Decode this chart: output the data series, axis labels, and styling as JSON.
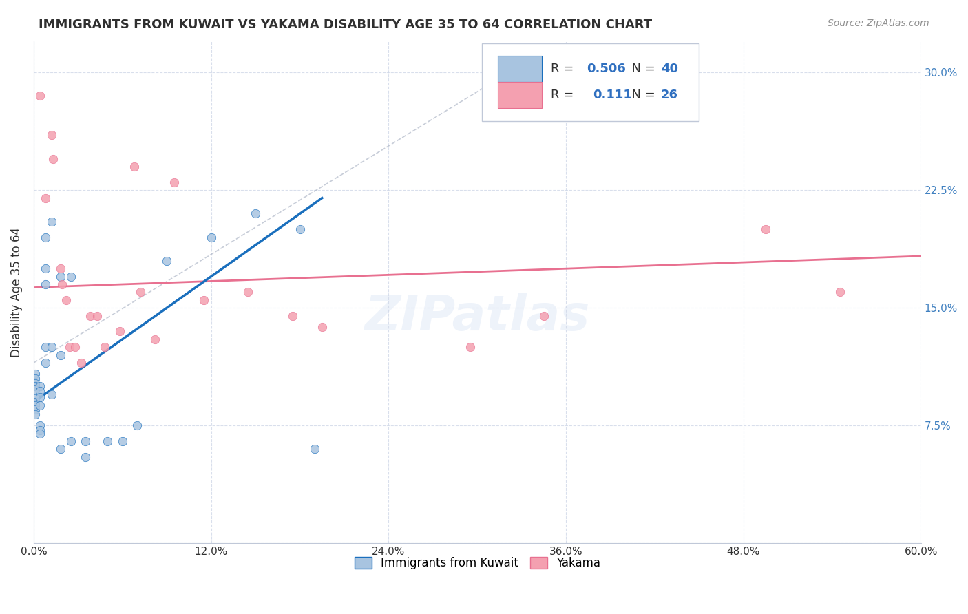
{
  "title": "IMMIGRANTS FROM KUWAIT VS YAKAMA DISABILITY AGE 35 TO 64 CORRELATION CHART",
  "source": "Source: ZipAtlas.com",
  "ylabel": "Disability Age 35 to 64",
  "xlim": [
    0.0,
    0.6
  ],
  "ylim": [
    0.0,
    0.32
  ],
  "yticks": [
    0.0,
    0.075,
    0.15,
    0.225,
    0.3
  ],
  "xticks": [
    0.0,
    0.12,
    0.24,
    0.36,
    0.48,
    0.6
  ],
  "blue_R": 0.506,
  "blue_N": 40,
  "pink_R": 0.111,
  "pink_N": 26,
  "blue_color": "#a8c4e0",
  "pink_color": "#f4a0b0",
  "blue_line_color": "#1a6fbd",
  "pink_line_color": "#e87090",
  "trend_line_color": "#b0b8c8",
  "blue_scatter_x": [
    0.001,
    0.001,
    0.001,
    0.001,
    0.001,
    0.001,
    0.001,
    0.001,
    0.001,
    0.001,
    0.004,
    0.004,
    0.004,
    0.004,
    0.004,
    0.004,
    0.004,
    0.008,
    0.008,
    0.008,
    0.008,
    0.008,
    0.012,
    0.012,
    0.012,
    0.018,
    0.018,
    0.018,
    0.025,
    0.025,
    0.035,
    0.035,
    0.05,
    0.06,
    0.07,
    0.09,
    0.12,
    0.15,
    0.18,
    0.19
  ],
  "blue_scatter_y": [
    0.108,
    0.105,
    0.102,
    0.1,
    0.098,
    0.092,
    0.09,
    0.088,
    0.085,
    0.082,
    0.1,
    0.097,
    0.093,
    0.088,
    0.075,
    0.072,
    0.07,
    0.195,
    0.175,
    0.165,
    0.125,
    0.115,
    0.205,
    0.125,
    0.095,
    0.17,
    0.12,
    0.06,
    0.17,
    0.065,
    0.065,
    0.055,
    0.065,
    0.065,
    0.075,
    0.18,
    0.195,
    0.21,
    0.2,
    0.06
  ],
  "pink_scatter_x": [
    0.004,
    0.008,
    0.012,
    0.013,
    0.018,
    0.019,
    0.022,
    0.024,
    0.028,
    0.032,
    0.038,
    0.043,
    0.048,
    0.058,
    0.068,
    0.072,
    0.082,
    0.095,
    0.115,
    0.145,
    0.175,
    0.195,
    0.295,
    0.345,
    0.495,
    0.545
  ],
  "pink_scatter_y": [
    0.285,
    0.22,
    0.26,
    0.245,
    0.175,
    0.165,
    0.155,
    0.125,
    0.125,
    0.115,
    0.145,
    0.145,
    0.125,
    0.135,
    0.24,
    0.16,
    0.13,
    0.23,
    0.155,
    0.16,
    0.145,
    0.138,
    0.125,
    0.145,
    0.2,
    0.16
  ],
  "blue_trend_x": [
    0.0,
    0.195
  ],
  "blue_trend_y": [
    0.09,
    0.22
  ],
  "pink_trend_x": [
    0.0,
    0.6
  ],
  "pink_trend_y": [
    0.163,
    0.183
  ],
  "dashed_trend_x": [
    0.0,
    0.33
  ],
  "dashed_trend_y": [
    0.115,
    0.305
  ],
  "watermark": "ZIPatlas",
  "legend_label_blue": "Immigrants from Kuwait",
  "legend_label_pink": "Yakama",
  "background_color": "#ffffff",
  "grid_color": "#d0d8e8",
  "title_color": "#303030",
  "axis_label_color": "#4080c0"
}
